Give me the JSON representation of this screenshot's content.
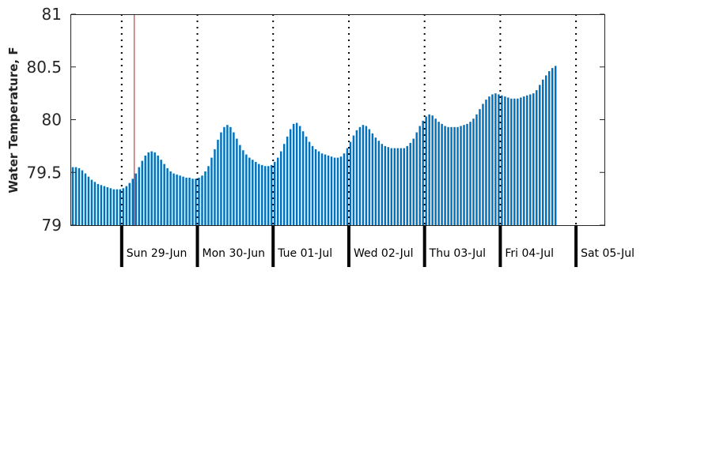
{
  "chart_data": {
    "type": "bar",
    "ylabel": "Water Temperature, F",
    "xlabel": "",
    "title": "",
    "ylim": [
      79,
      81
    ],
    "yticks": [
      79,
      79.5,
      80,
      80.5,
      81
    ],
    "ytick_labels": [
      "79",
      "79.5",
      "80",
      "80.5",
      "81"
    ],
    "grid": false,
    "bar_color": "#0072bd",
    "day_boundary_color": "#000000",
    "current_time_color": "#ff0000",
    "start_time": "2025-06-28 08:00",
    "end_time": "2025-07-05 09:00",
    "day_boundaries": [
      "2025-06-29",
      "2025-06-30",
      "2025-07-01",
      "2025-07-02",
      "2025-07-03",
      "2025-07-04",
      "2025-07-05"
    ],
    "day_labels": [
      "Sun 29-Jun",
      "Mon 30-Jun",
      "Tue 01-Jul",
      "Wed 02-Jul",
      "Thu 03-Jul",
      "Fri 04-Jul",
      "Sat 05-Jul"
    ],
    "current_time": "2025-06-29 04:00",
    "series": [
      {
        "values_interval_hours": 1,
        "values": [
          79.55,
          79.55,
          79.54,
          79.52,
          79.49,
          79.46,
          79.43,
          79.41,
          79.39,
          79.38,
          79.37,
          79.36,
          79.35,
          79.34,
          79.34,
          79.34,
          79.35,
          79.37,
          79.4,
          79.44,
          79.49,
          79.55,
          79.61,
          79.66,
          79.69,
          79.7,
          79.69,
          79.66,
          79.62,
          79.58,
          79.54,
          79.51,
          79.49,
          79.48,
          79.47,
          79.46,
          79.45,
          79.45,
          79.44,
          79.44,
          79.45,
          79.47,
          79.51,
          79.56,
          79.64,
          79.72,
          79.81,
          79.88,
          79.93,
          79.95,
          79.93,
          79.88,
          79.82,
          79.76,
          79.71,
          79.67,
          79.64,
          79.62,
          79.6,
          79.58,
          79.57,
          79.56,
          79.56,
          79.57,
          79.6,
          79.64,
          79.7,
          79.77,
          79.84,
          79.91,
          79.96,
          79.97,
          79.94,
          79.89,
          79.84,
          79.79,
          79.75,
          79.72,
          79.7,
          79.68,
          79.67,
          79.66,
          79.65,
          79.64,
          79.64,
          79.65,
          79.68,
          79.73,
          79.79,
          79.85,
          79.9,
          79.93,
          79.95,
          79.94,
          79.91,
          79.87,
          79.83,
          79.8,
          79.77,
          79.75,
          79.74,
          79.73,
          79.73,
          79.73,
          79.73,
          79.73,
          79.75,
          79.78,
          79.82,
          79.88,
          79.94,
          79.99,
          80.03,
          80.05,
          80.04,
          80.01,
          79.98,
          79.96,
          79.94,
          79.93,
          79.93,
          79.93,
          79.93,
          79.94,
          79.95,
          79.96,
          79.98,
          80.01,
          80.05,
          80.1,
          80.15,
          80.19,
          80.22,
          80.24,
          80.25,
          80.24,
          80.23,
          80.22,
          80.21,
          80.2,
          80.2,
          80.2,
          80.21,
          80.22,
          80.23,
          80.24,
          80.25,
          80.28,
          80.33,
          80.38,
          80.42,
          80.46,
          80.49,
          80.51
        ]
      }
    ]
  }
}
